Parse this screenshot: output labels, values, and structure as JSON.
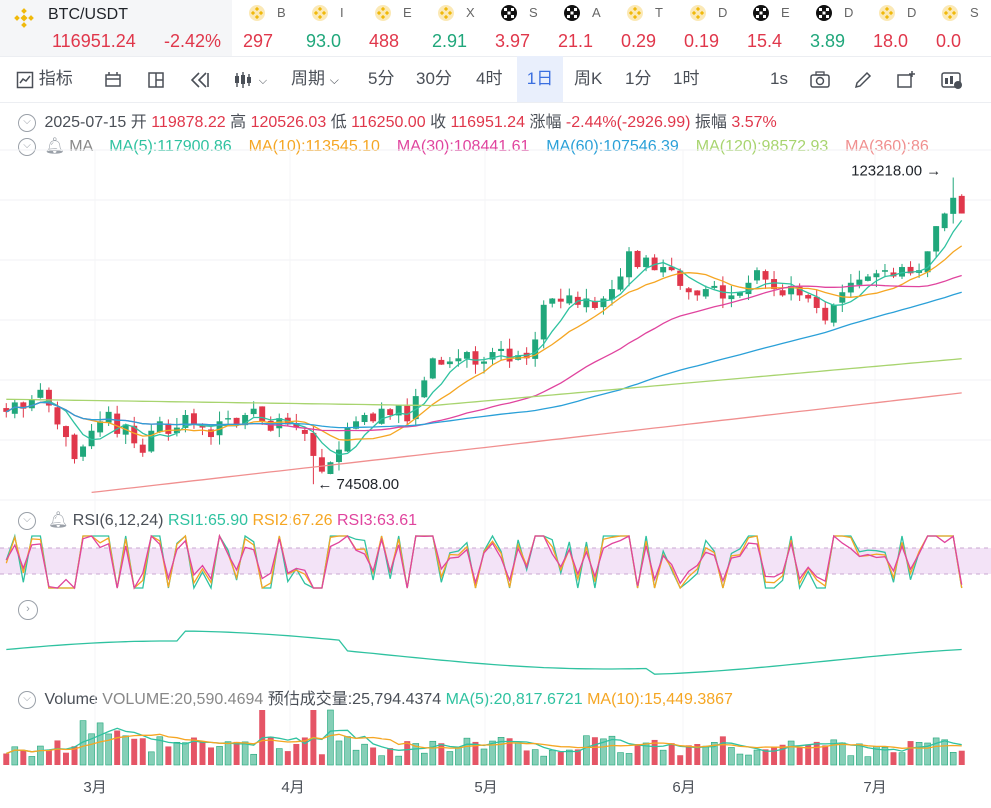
{
  "ticker_main": {
    "symbol": "BTC/USDT",
    "price": "116951.24",
    "change": "-2.42%"
  },
  "tickers": [
    {
      "name": "B",
      "value": "297",
      "dir": "dn",
      "icon": "binance-icon"
    },
    {
      "name": "I",
      "value": "93.0",
      "dir": "up",
      "icon": "binance-icon"
    },
    {
      "name": "E",
      "value": "488",
      "dir": "dn",
      "icon": "binance-icon"
    },
    {
      "name": "X",
      "value": "2.91",
      "dir": "up",
      "icon": "binance-icon"
    },
    {
      "name": "S",
      "value": "3.97",
      "dir": "dn",
      "icon": "okx-icon"
    },
    {
      "name": "A",
      "value": "21.1",
      "dir": "dn",
      "icon": "okx-icon"
    },
    {
      "name": "T",
      "value": "0.29",
      "dir": "dn",
      "icon": "binance-icon"
    },
    {
      "name": "D",
      "value": "0.19",
      "dir": "dn",
      "icon": "binance-icon"
    },
    {
      "name": "E",
      "value": "15.4",
      "dir": "dn",
      "icon": "okx-icon"
    },
    {
      "name": "D",
      "value": "3.89",
      "dir": "up",
      "icon": "okx-icon"
    },
    {
      "name": "D",
      "value": "18.0",
      "dir": "dn",
      "icon": "binance-icon"
    },
    {
      "name": "S",
      "value": "0.0",
      "dir": "dn",
      "icon": "binance-icon"
    }
  ],
  "toolbar": {
    "indicators": "指标",
    "period": "周期",
    "intervals": [
      "5分",
      "30分",
      "4时",
      "1日",
      "周K",
      "1分",
      "1时"
    ],
    "active_interval": "1日",
    "speed": "1s"
  },
  "ohlc": {
    "date": "2025-07-15",
    "open_label": "开",
    "open": "119878.22",
    "high_label": "高",
    "high": "120526.03",
    "low_label": "低",
    "low": "116250.00",
    "close_label": "收",
    "close": "116951.24",
    "chg_label": "涨幅",
    "chg": "-2.44%(-2926.99)",
    "amp_label": "振幅",
    "amp": "3.57%"
  },
  "ma_legend": {
    "title": "MA",
    "items": [
      "MA(5):117900.86",
      "MA(10):113545.10",
      "MA(30):108441.61",
      "MA(60):107546.39",
      "MA(120):98572.93",
      "MA(360):86"
    ]
  },
  "rsi_legend": {
    "title": "RSI(6,12,24)",
    "items": [
      "RSI1:65.90",
      "RSI2:67.26",
      "RSI3:63.61"
    ]
  },
  "volume_legend": {
    "title": "Volume",
    "volume": "VOLUME:20,590.4694",
    "estimate": "预估成交量:25,794.4374",
    "ma5": "MA(5):20,817.6721",
    "ma10": "MA(10):15,449.3867"
  },
  "annotations": {
    "high": "123218.00",
    "low": "74508.00"
  },
  "x_labels": [
    "3月",
    "4月",
    "5月",
    "6月",
    "7月"
  ],
  "colors": {
    "up": "#20a77b",
    "down": "#e0374b",
    "ma5": "#2fc2a0",
    "ma10": "#f5a623",
    "ma30": "#e0449e",
    "ma60": "#2aa0d8",
    "ma120": "#a8d46f",
    "ma360": "#f08f8f",
    "rsi1": "#2fc2a0",
    "rsi2": "#f5a623",
    "rsi3": "#e0449e",
    "accent": "#3b6fe0"
  },
  "chart_data": {
    "type": "candlestick",
    "title": "BTC/USDT 1日",
    "ylim": [
      72000,
      126000
    ],
    "x_ticks": [
      "3月",
      "4月",
      "5月",
      "6月",
      "7月"
    ],
    "series_closes_approx": [
      86000,
      87500,
      86500,
      88000,
      89500,
      87000,
      84000,
      82000,
      78500,
      80500,
      83000,
      84500,
      86000,
      82500,
      84000,
      81000,
      79500,
      83000,
      84500,
      82500,
      83500,
      85500,
      84000,
      83500,
      82000,
      84500,
      85000,
      84000,
      85500,
      86500,
      84500,
      83000,
      85000,
      84000,
      83500,
      82500,
      79000,
      76500,
      78000,
      80000,
      83500,
      84500,
      85500,
      84500,
      86500,
      85500,
      87000,
      84500,
      88500,
      91000,
      94500,
      93500,
      94000,
      94500,
      95500,
      93500,
      94000,
      95500,
      96000,
      94000,
      95000,
      94500,
      97500,
      103000,
      104000,
      103500,
      104500,
      103000,
      104000,
      102500,
      104000,
      105500,
      107500,
      111500,
      109000,
      110500,
      108500,
      109000,
      108500,
      106000,
      105000,
      104500,
      105500,
      106000,
      104000,
      104500,
      105000,
      106500,
      108500,
      107000,
      105500,
      104500,
      106000,
      104500,
      104000,
      102500,
      100500,
      103000,
      105000,
      106500,
      107000,
      107500,
      108000,
      108500,
      107500,
      109000,
      108000,
      108500,
      111500,
      115500,
      117500,
      120000,
      117500
    ]
  }
}
